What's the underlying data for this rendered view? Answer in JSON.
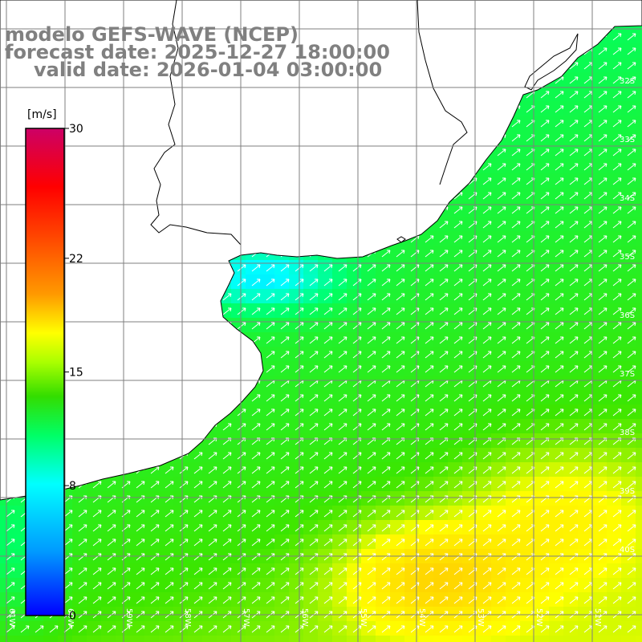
{
  "title": {
    "line1": "modelo GEFS-WAVE (NCEP)",
    "line2": "forecast date: 2025-12-27 18:00:00",
    "line3": "valid date: 2026-01-04 03:00:00"
  },
  "colorbar": {
    "unit": "[m/s]",
    "ticks": [
      "30",
      "22",
      "15",
      "8",
      "0"
    ],
    "tick_values": [
      30,
      22,
      15,
      8,
      0
    ],
    "colors": [
      "#0000ff",
      "#0099ff",
      "#00ffff",
      "#00ff66",
      "#33ff00",
      "#aaff00",
      "#ffff00",
      "#ff9900",
      "#ff4400",
      "#ff0000",
      "#cc0066"
    ]
  },
  "latitude_labels": [
    "32S",
    "33S",
    "34S",
    "35S",
    "36S",
    "37S",
    "38S",
    "39S",
    "40S"
  ],
  "longitude_labels": [
    "61W",
    "60W",
    "59W",
    "58W",
    "57W",
    "56W",
    "55W",
    "54W",
    "53W",
    "52W",
    "51W"
  ],
  "map": {
    "land_color": "#ffffff",
    "coastline_color": "#000000",
    "graticule_color": "#7f7f7f",
    "arrow_color": "#ffffff"
  }
}
